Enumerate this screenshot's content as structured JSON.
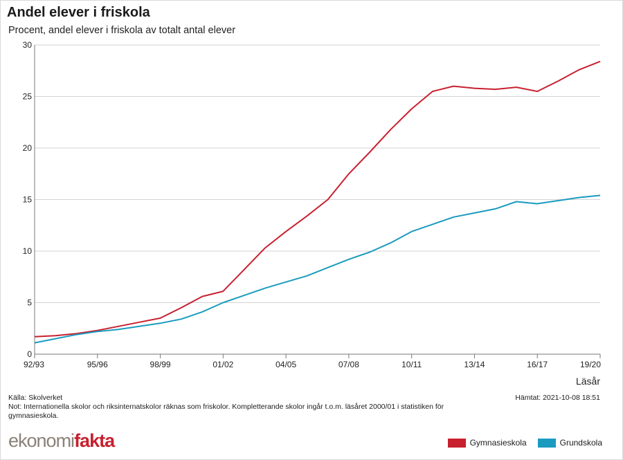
{
  "chart": {
    "title": "Andel elever i friskola",
    "subtitle": "Procent, andel elever i friskola av totalt antal elever"
  },
  "footer": {
    "source": "Källa: Skolverket",
    "fetched": "Hämtat: 2021-10-08 18:51",
    "note": "Not: Internationella skolor och riksinternatskolor räknas som friskolor. Kompletterande skolor ingår t.o.m. läsåret 2000/01 i statistiken för gymnasieskola.",
    "logo_part1": "ekonomi",
    "logo_part2": "fakta"
  },
  "chart_data": {
    "type": "line",
    "title": "Andel elever i friskola",
    "subtitle": "Procent, andel elever i friskola av totalt antal elever",
    "xlabel": "Läsår",
    "ylabel": "",
    "ylim": [
      0,
      30
    ],
    "yticks": [
      0,
      5,
      10,
      15,
      20,
      25,
      30
    ],
    "grid": true,
    "legend_position": "bottom-right",
    "x": [
      "92/93",
      "93/94",
      "94/95",
      "95/96",
      "96/97",
      "97/98",
      "98/99",
      "99/00",
      "00/01",
      "01/02",
      "02/03",
      "03/04",
      "04/05",
      "05/06",
      "06/07",
      "07/08",
      "08/09",
      "09/10",
      "10/11",
      "11/12",
      "12/13",
      "13/14",
      "14/15",
      "15/16",
      "16/17",
      "17/18",
      "18/19",
      "19/20"
    ],
    "xtick_labels": [
      "92/93",
      "95/96",
      "98/99",
      "01/02",
      "04/05",
      "07/08",
      "10/11",
      "13/14",
      "16/17",
      "19/20"
    ],
    "series": [
      {
        "name": "Gymnasieskola",
        "color": "#c8202f",
        "values": [
          1.7,
          1.8,
          2.0,
          2.3,
          2.7,
          3.1,
          3.5,
          4.5,
          5.6,
          6.1,
          8.2,
          10.3,
          11.9,
          13.4,
          15.0,
          17.5,
          19.6,
          21.8,
          23.8,
          25.5,
          26.0,
          25.8,
          25.7,
          25.9,
          25.5,
          26.5,
          27.6,
          28.4
        ]
      },
      {
        "name": "Grundskola",
        "color": "#1a9bbf",
        "values": [
          1.1,
          1.5,
          1.9,
          2.2,
          2.4,
          2.7,
          3.0,
          3.4,
          4.1,
          5.0,
          5.7,
          6.4,
          7.0,
          7.6,
          8.4,
          9.2,
          9.9,
          10.8,
          11.9,
          12.6,
          13.3,
          13.7,
          14.1,
          14.8,
          14.6,
          14.9,
          15.2,
          15.4
        ]
      }
    ]
  }
}
